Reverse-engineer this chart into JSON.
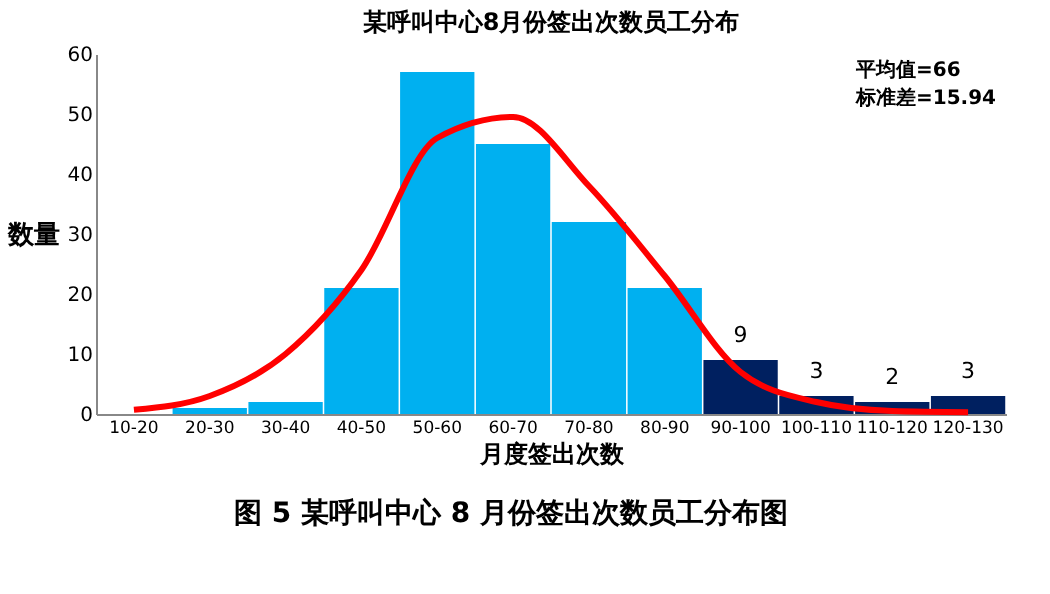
{
  "chart_data": {
    "type": "bar",
    "title": "某呼叫中心8月份签出次数员工分布",
    "xlabel": "月度签出次数",
    "ylabel": "数量",
    "categories": [
      "10-20",
      "20-30",
      "30-40",
      "40-50",
      "50-60",
      "60-70",
      "70-80",
      "80-90",
      "90-100",
      "100-110",
      "110-120",
      "120-130"
    ],
    "series": [
      {
        "values": [
          0,
          1,
          2,
          21,
          57,
          45,
          32,
          21,
          9,
          3,
          2,
          3
        ],
        "colors": [
          "#00b0f0",
          "#00b0f0",
          "#00b0f0",
          "#00b0f0",
          "#00b0f0",
          "#00b0f0",
          "#00b0f0",
          "#00b0f0",
          "#002060",
          "#002060",
          "#002060",
          "#002060"
        ],
        "value_labels": [
          null,
          null,
          null,
          null,
          null,
          null,
          null,
          null,
          "9",
          "3",
          "2",
          "3"
        ]
      },
      {
        "type": "line",
        "color": "#ff0000",
        "values": [
          0.7,
          3,
          10,
          24,
          46,
          49.5,
          38,
          23,
          7,
          2,
          0.5,
          0.3
        ]
      }
    ],
    "ylim": [
      0,
      60
    ],
    "yticks": [
      0,
      10,
      20,
      30,
      40,
      50,
      60
    ],
    "grid": false,
    "line_style": "solid",
    "marker": "none",
    "annotations": [
      "平均值=66",
      "标准差=15.94",
      "图 5 某呼叫中心 8 月份签出次数员工分布图"
    ]
  }
}
